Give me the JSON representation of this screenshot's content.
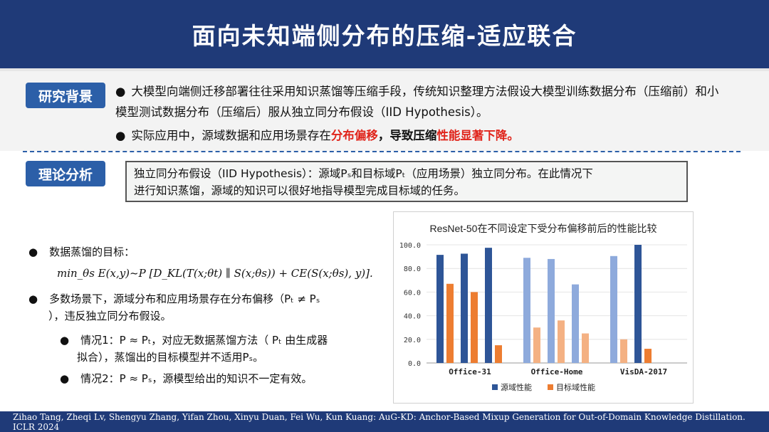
{
  "header": {
    "title": "面向未知端侧分布的压缩-适应联合"
  },
  "background": {
    "tag": "研究背景",
    "bullet1": "大模型向端侧迁移部署往往采用知识蒸馏等压缩手段，传统知识整理方法假设大模型训练数据分布（压缩前）和小模型测试数据分布（压缩后）服从独立同分布假设（IID Hypothesis）。",
    "bullet2_pre": "实际应用中，源域数据和应用场景存在",
    "bullet2_red1": "分布偏移",
    "bullet2_mid": "，导致压缩",
    "bullet2_red2": "性能显著下降",
    "bullet2_end": "。"
  },
  "theory": {
    "tag": "理论分析",
    "hypothesis_line1": "独立同分布假设（IID Hypothesis）：源域Pₛ和目标域Pₜ（应用场景）独立同分布。在此情况下",
    "hypothesis_line2": "进行知识蒸馏，源域的知识可以很好地指导模型完成目标域的任务。",
    "goal_label": "数据蒸馏的目标：",
    "formula": "min_θs E(x,y)~P [D_KL(T(x;θt) ∥ S(x;θs)) + CE(S(x;θs), y)].",
    "multi_line1": "多数场景下，源域分布和应用场景存在分布偏移（Pₜ ≠ Pₛ",
    "multi_line2": "），违反独立同分布假设。",
    "case1_line1": "情况1：P ≈ Pₜ，对应无数据蒸馏方法（ Pₜ 由生成器",
    "case1_line2": "拟合），蒸馏出的目标模型并不适用Pₛ。",
    "case2": "情况2：P ≈ Pₛ，源模型给出的知识不一定有效。"
  },
  "chart_data": {
    "type": "bar",
    "title": "ResNet-50在不同设定下受分布偏移前后的性能比较",
    "ylim": [
      0,
      100
    ],
    "yticks": [
      "0.0",
      "20.0",
      "40.0",
      "60.0",
      "80.0",
      "100.0"
    ],
    "groups": [
      "Office-31",
      "Office-Home",
      "VisDA-2017"
    ],
    "subgroup_counts": [
      3,
      3,
      2
    ],
    "series": [
      {
        "name": "源域性能",
        "values": [
          91.5,
          92.5,
          97.5,
          89,
          88,
          66.5,
          90.5,
          100
        ],
        "colors": [
          "#2e5597",
          "#2e5597",
          "#2e5597",
          "#8eaadc",
          "#8eaadc",
          "#8eaadc",
          "#8eaadc",
          "#2e5597"
        ]
      },
      {
        "name": "目标域性能",
        "values": [
          67,
          60,
          15,
          30,
          36,
          25,
          20,
          12
        ],
        "colors": [
          "#ed7d31",
          "#ed7d31",
          "#ed7d31",
          "#f4b183",
          "#f4b183",
          "#f4b183",
          "#f4b183",
          "#ed7d31"
        ]
      }
    ],
    "legend_colors": [
      "#2e5597",
      "#ed7d31"
    ],
    "legend": "bottom"
  },
  "footer": {
    "text": "Zihao Tang, Zheqi Lv, Shengyu Zhang, Yifan Zhou, Xinyu Duan, Fei Wu, Kun Kuang: AuG-KD: Anchor-Based Mixup Generation for Out-of-Domain Knowledge Distillation. ICLR 2024"
  }
}
